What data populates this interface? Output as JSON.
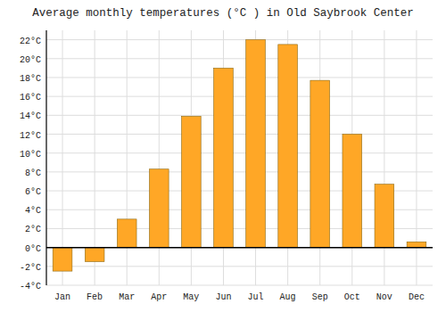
{
  "chart_data": {
    "type": "bar",
    "title": "Average monthly temperatures (°C ) in Old Saybrook Center",
    "categories": [
      "Jan",
      "Feb",
      "Mar",
      "Apr",
      "May",
      "Jun",
      "Jul",
      "Aug",
      "Sep",
      "Oct",
      "Nov",
      "Dec"
    ],
    "values": [
      -2.5,
      -1.5,
      3.0,
      8.3,
      13.9,
      19.0,
      22.0,
      21.5,
      17.7,
      12.0,
      6.7,
      0.6
    ],
    "color": "#FFA726",
    "ylim": [
      -4,
      23
    ],
    "yticks": [
      {
        "value": -4,
        "label": "-4°C"
      },
      {
        "value": -2,
        "label": "-2°C"
      },
      {
        "value": 0,
        "label": "0°C"
      },
      {
        "value": 2,
        "label": "2°C"
      },
      {
        "value": 4,
        "label": "4°C"
      },
      {
        "value": 6,
        "label": "6°C"
      },
      {
        "value": 8,
        "label": "8°C"
      },
      {
        "value": 10,
        "label": "10°C"
      },
      {
        "value": 12,
        "label": "12°C"
      },
      {
        "value": 14,
        "label": "14°C"
      },
      {
        "value": 16,
        "label": "16°C"
      },
      {
        "value": 18,
        "label": "18°C"
      },
      {
        "value": 20,
        "label": "20°C"
      },
      {
        "value": 22,
        "label": "22°C"
      }
    ],
    "grid": true
  }
}
